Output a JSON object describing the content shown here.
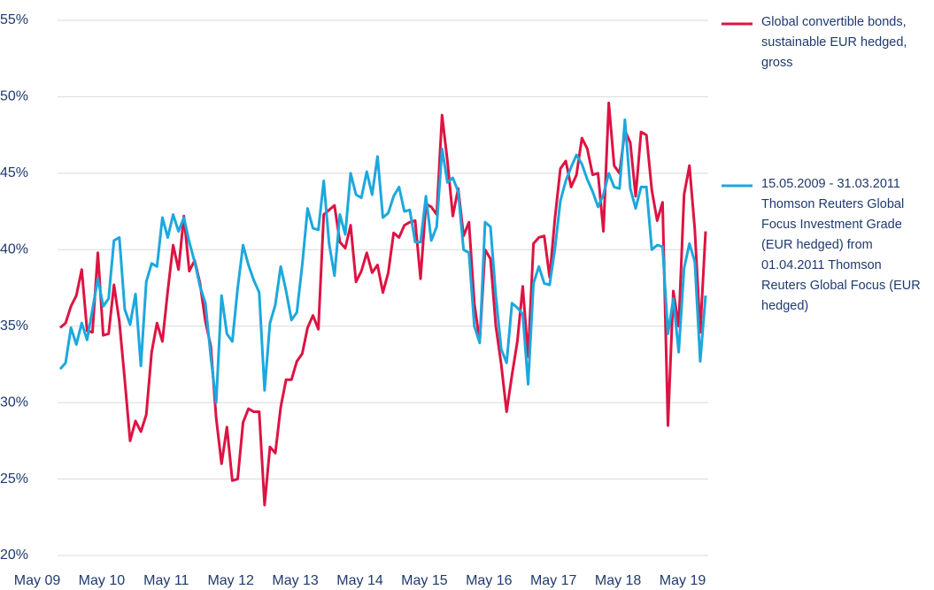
{
  "chart_data": {
    "type": "line",
    "categories": [
      "May 09",
      null,
      null,
      null,
      null,
      null,
      null,
      null,
      null,
      null,
      null,
      null,
      "May 10",
      null,
      null,
      null,
      null,
      null,
      null,
      null,
      null,
      null,
      null,
      null,
      "May 11",
      null,
      null,
      null,
      null,
      null,
      null,
      null,
      null,
      null,
      null,
      null,
      "May 12",
      null,
      null,
      null,
      null,
      null,
      null,
      null,
      null,
      null,
      null,
      null,
      "May 13",
      null,
      null,
      null,
      null,
      null,
      null,
      null,
      null,
      null,
      null,
      null,
      "May 14",
      null,
      null,
      null,
      null,
      null,
      null,
      null,
      null,
      null,
      null,
      null,
      "May 15",
      null,
      null,
      null,
      null,
      null,
      null,
      null,
      null,
      null,
      null,
      null,
      "May 16",
      null,
      null,
      null,
      null,
      null,
      null,
      null,
      null,
      null,
      null,
      null,
      "May 17",
      null,
      null,
      null,
      null,
      null,
      null,
      null,
      null,
      null,
      null,
      null,
      "May 18",
      null,
      null,
      null,
      null,
      null,
      null,
      null,
      null,
      null,
      null,
      null,
      "May 19"
    ],
    "series": [
      {
        "name": "Global convertible bonds, sustainable EUR hedged, gross",
        "color": "#dc1443",
        "values": [
          34.9,
          35.2,
          36.3,
          37,
          38.7,
          34.7,
          34.6,
          39.8,
          34.4,
          34.5,
          37.7,
          35.3,
          31.5,
          27.5,
          28.8,
          28.1,
          29.2,
          33.3,
          35.2,
          34.0,
          37.3,
          40.3,
          38.7,
          42.2,
          38.6,
          39.3,
          37.8,
          35.3,
          33.7,
          29.0,
          26.0,
          28.4,
          24.9,
          25.0,
          28.7,
          29.6,
          29.4,
          29.4,
          23.3,
          27.1,
          26.7,
          29.7,
          31.5,
          31.5,
          32.7,
          33.2,
          34.9,
          35.7,
          34.8,
          42.3,
          42.6,
          42.9,
          40.5,
          40.1,
          41.6,
          37.9,
          38.6,
          39.8,
          38.5,
          39.0,
          37.2,
          38.5,
          41.1,
          40.8,
          41.6,
          41.8,
          41.9,
          38.1,
          43.0,
          42.8,
          42.3,
          48.8,
          45.8,
          42.2,
          44.0,
          40.9,
          41.8,
          36.5,
          34.0,
          40.0,
          39.4,
          35.0,
          32.5,
          29.4,
          31.8,
          34.0,
          37.6,
          33.0,
          40.4,
          40.8,
          40.9,
          38.2,
          42.1,
          45.3,
          45.8,
          44.1,
          44.9,
          47.3,
          46.6,
          44.9,
          45.0,
          41.2,
          49.6,
          45.5,
          45.0,
          47.8,
          47.0,
          43.5,
          47.7,
          47.5,
          43.9,
          41.9,
          43.1,
          28.5,
          37.3,
          35.0,
          43.6,
          45.5,
          41.3,
          34.6,
          41.2
        ]
      },
      {
        "name": "15.05.2009 - 31.03.2011 Thomson Reuters Global Focus Investment Grade (EUR hedged) from 01.04.2011 Thomson Reuters Global Focus (EUR hedged)",
        "color": "#1ca8dd",
        "values": [
          32.2,
          32.6,
          34.9,
          33.8,
          35.2,
          34.1,
          36.1,
          38.1,
          36.3,
          36.8,
          40.6,
          40.8,
          36.1,
          35.1,
          37.1,
          32.4,
          37.9,
          39.1,
          38.9,
          42.1,
          40.8,
          42.3,
          41.2,
          42.1,
          40.5,
          39.2,
          37.6,
          36.5,
          33.0,
          30.0,
          37.0,
          34.5,
          34.0,
          37.5,
          40.3,
          39.0,
          38.0,
          37.2,
          30.8,
          35.2,
          36.4,
          38.9,
          37.3,
          35.4,
          35.9,
          39.0,
          42.7,
          41.4,
          41.3,
          44.5,
          40.4,
          38.3,
          42.3,
          41.0,
          45.0,
          43.6,
          43.4,
          45.1,
          43.6,
          46.1,
          42.1,
          42.4,
          43.5,
          44.1,
          42.5,
          42.6,
          40.5,
          40.5,
          43.5,
          40.6,
          41.5,
          46.6,
          44.4,
          44.7,
          43.8,
          40.0,
          39.8,
          35.0,
          33.9,
          41.8,
          41.5,
          37.0,
          33.5,
          32.6,
          36.5,
          36.2,
          35.8,
          31.2,
          37.8,
          38.9,
          37.8,
          37.7,
          40.1,
          43.2,
          44.5,
          45.4,
          46.2,
          45.6,
          44.6,
          43.8,
          42.8,
          43.6,
          45.0,
          44.1,
          44.0,
          48.5,
          44.0,
          42.7,
          44.1,
          44.1,
          40.0,
          40.3,
          40.2,
          34.5,
          36.8,
          33.3,
          38.8,
          40.4,
          39.2,
          32.7,
          37.0
        ]
      }
    ],
    "ylim": [
      20,
      55
    ],
    "yticks": [
      {
        "value": 20,
        "label": "20%"
      },
      {
        "value": 25,
        "label": "25%"
      },
      {
        "value": 30,
        "label": "30%"
      },
      {
        "value": 35,
        "label": "35%"
      },
      {
        "value": 40,
        "label": "40%"
      },
      {
        "value": 45,
        "label": "45%"
      },
      {
        "value": 50,
        "label": "50%"
      },
      {
        "value": 55,
        "label": "55%"
      }
    ],
    "grid": true,
    "legend": "right"
  }
}
